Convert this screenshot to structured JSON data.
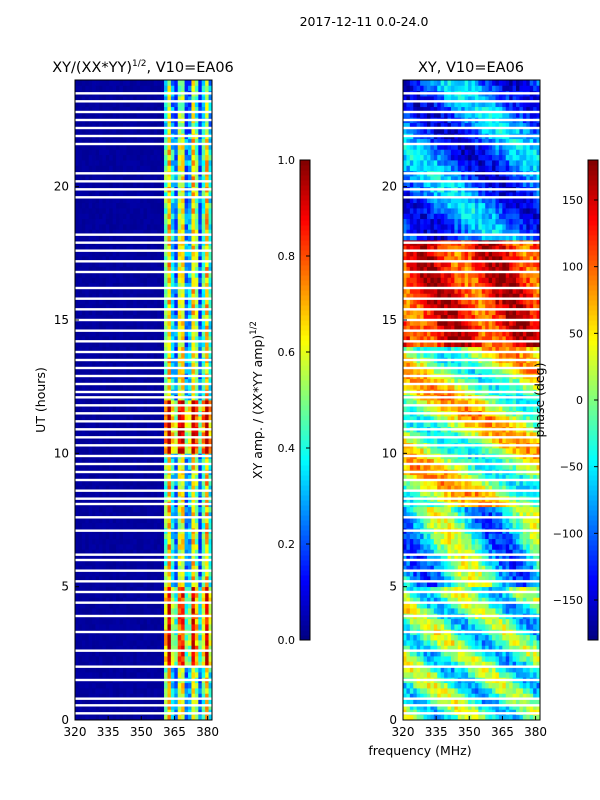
{
  "figure": {
    "suptitle": "2017-12-11 0.0-24.0",
    "xlabel_shared": "frequency (MHz)"
  },
  "colors": {
    "jet": [
      "#00007f",
      "#0000ff",
      "#007fff",
      "#00ffff",
      "#7fff7f",
      "#ffff00",
      "#ff7f00",
      "#ff0000",
      "#7f0000"
    ],
    "axis": "#000000",
    "gap": "#ffffff"
  },
  "chart_data": [
    {
      "type": "heatmap",
      "title_prefix": "XY/(XX*YY)",
      "title_sup": "1/2",
      "title_suffix": ", V10=EA06",
      "xlabel": "",
      "ylabel": "UT (hours)",
      "xlim": [
        320,
        382
      ],
      "ylim": [
        0,
        24
      ],
      "xticks": [
        "320",
        "335",
        "350",
        "365",
        "380"
      ],
      "xtick_values": [
        320,
        335,
        350,
        365,
        380
      ],
      "yticks": [
        "0",
        "5",
        "10",
        "15",
        "20"
      ],
      "ytick_values": [
        0,
        5,
        10,
        15,
        20
      ],
      "description_values": "normalized XY amplitude, near 0 below 360 MHz, 0.2-0.9 above 360 MHz",
      "colorbar": {
        "label_prefix": "XY amp. / (XX*YY amp)",
        "label_sup": "1/2",
        "range": [
          0.0,
          1.0
        ],
        "ticks": [
          "0.0",
          "0.2",
          "0.4",
          "0.6",
          "0.8",
          "1.0"
        ],
        "tick_values": [
          0.0,
          0.2,
          0.4,
          0.6,
          0.8,
          1.0
        ]
      }
    },
    {
      "type": "heatmap",
      "title": "XY, V10=EA06",
      "xlabel": "",
      "ylabel": "",
      "xlim": [
        320,
        382
      ],
      "ylim": [
        0,
        24
      ],
      "xticks": [
        "320",
        "335",
        "350",
        "365",
        "380"
      ],
      "xtick_values": [
        320,
        335,
        350,
        365,
        380
      ],
      "yticks": [
        "0",
        "5",
        "10",
        "15",
        "20"
      ],
      "ytick_values": [
        0,
        5,
        10,
        15,
        20
      ],
      "description_values": "XY phase in degrees, -180 to 180",
      "colorbar": {
        "label": "phase (deg)",
        "range": [
          -180,
          180
        ],
        "ticks": [
          "−150",
          "−100",
          "−50",
          "0",
          "50",
          "100",
          "150"
        ],
        "tick_values": [
          -150,
          -100,
          -50,
          0,
          50,
          100,
          150
        ]
      }
    }
  ],
  "gap_hours": [
    0.25,
    0.55,
    0.8,
    1.5,
    2.0,
    2.6,
    3.3,
    3.9,
    4.4,
    4.8,
    5.2,
    5.6,
    6.0,
    6.2,
    7.1,
    7.6,
    8.1,
    8.3,
    8.6,
    9.0,
    9.3,
    9.6,
    9.9,
    10.3,
    10.6,
    10.9,
    11.2,
    11.5,
    11.8,
    12.1,
    12.3,
    12.6,
    12.9,
    13.2,
    13.5,
    13.8,
    14.2,
    14.6,
    15.0,
    15.4,
    15.8,
    16.2,
    16.8,
    17.2,
    17.6,
    17.9,
    18.2,
    19.6,
    19.9,
    20.2,
    20.5,
    21.6,
    21.9,
    22.2,
    22.5,
    22.8,
    23.2,
    23.5
  ]
}
